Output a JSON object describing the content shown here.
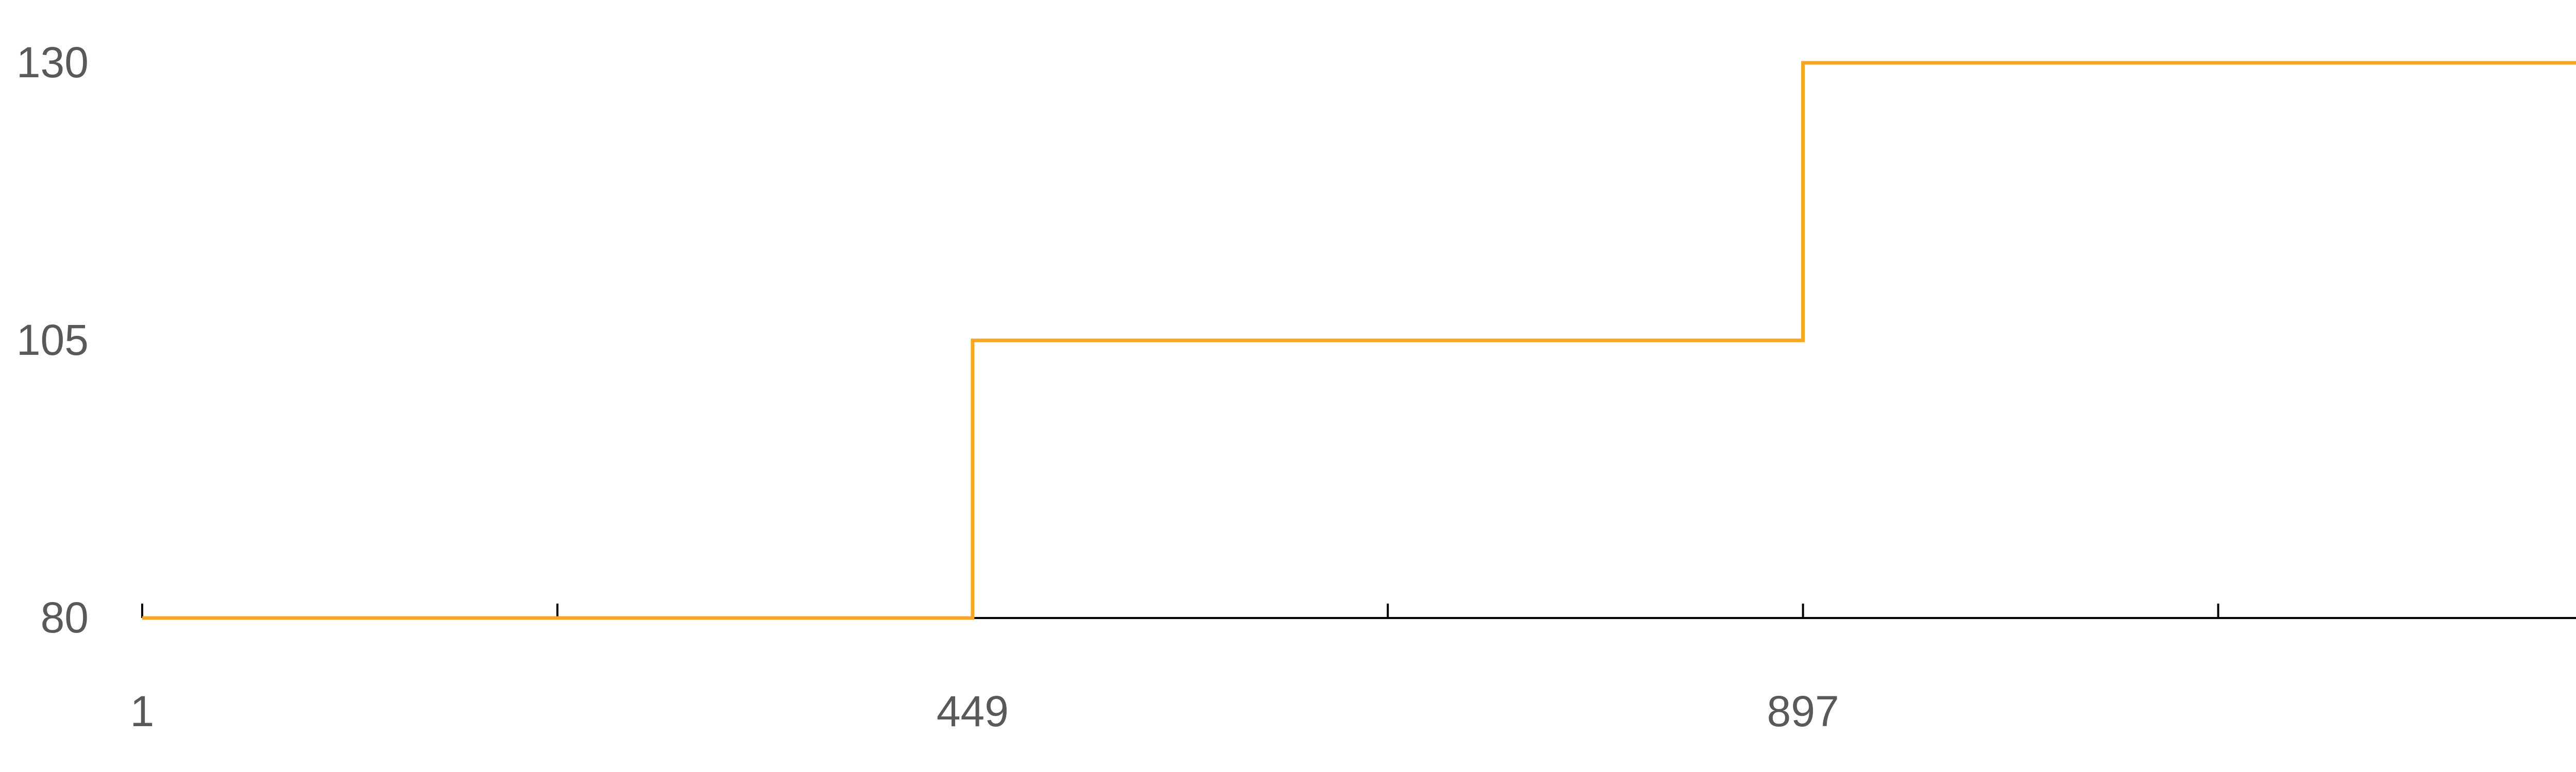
{
  "chart_data": {
    "type": "line",
    "step": true,
    "title": "",
    "xlabel": "",
    "ylabel": "",
    "x_tick_labels": [
      "1",
      "449",
      "897"
    ],
    "y_tick_labels": [
      "80",
      "105",
      "130"
    ],
    "ylim": [
      80,
      130
    ],
    "xlim": [
      1,
      1346
    ],
    "x_tick_marks": [
      1,
      225,
      449,
      673,
      897,
      1121,
      1345
    ],
    "grid": false,
    "series": [
      {
        "color": "#F5A623",
        "x": [
          1,
          449,
          449,
          897,
          897,
          1345
        ],
        "y": [
          80,
          80,
          105,
          105,
          130,
          130
        ]
      }
    ]
  }
}
